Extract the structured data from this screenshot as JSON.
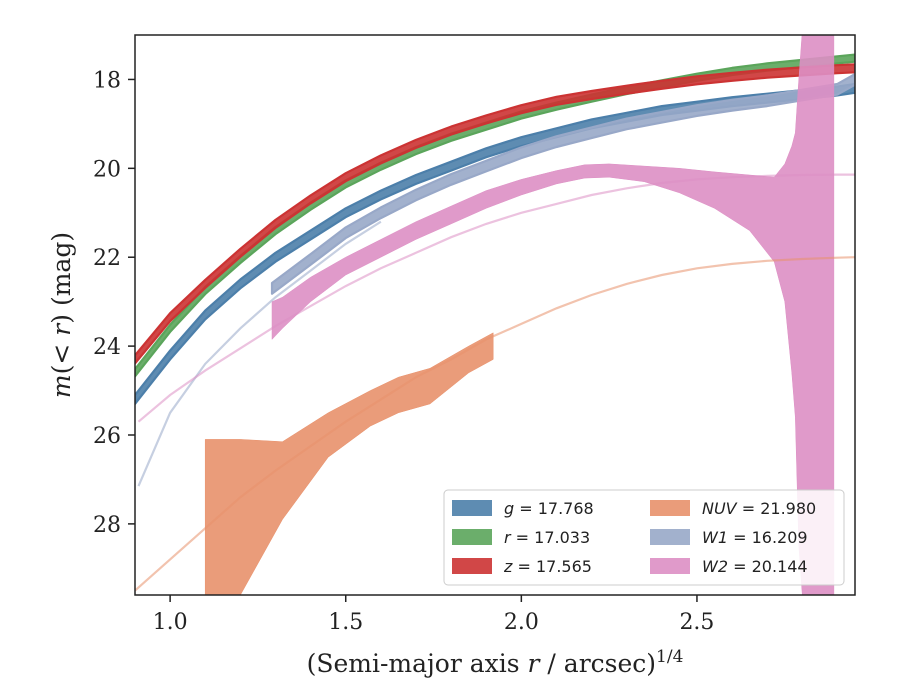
{
  "chart_data": {
    "type": "area",
    "title": "",
    "xlabel_main": "(Semi-major axis ",
    "xlabel_var": "r",
    "xlabel_tail": " / arcsec)",
    "xlabel_exp": "1/4",
    "ylabel_var": "m",
    "ylabel_paren": "(< ",
    "ylabel_r": "r",
    "ylabel_tail": ") (mag)",
    "xlim": [
      0.9,
      2.95
    ],
    "ylim": [
      29.6,
      17.0
    ],
    "y_inverted": true,
    "xticks": [
      1.0,
      1.5,
      2.0,
      2.5
    ],
    "xtick_labels": [
      "1.0",
      "1.5",
      "2.0",
      "2.5"
    ],
    "yticks": [
      18,
      20,
      22,
      24,
      26,
      28
    ],
    "ytick_labels": [
      "18",
      "20",
      "22",
      "24",
      "26",
      "28"
    ],
    "legend_placement": "lower-right",
    "grid": false,
    "series": [
      {
        "name": "g",
        "label_var": "g",
        "label_val": " = 17.768",
        "color": "#4c7faa",
        "band_x": [
          0.9,
          1.0,
          1.1,
          1.2,
          1.3,
          1.4,
          1.5,
          1.6,
          1.7,
          1.8,
          1.9,
          2.0,
          2.1,
          2.2,
          2.3,
          2.4,
          2.5,
          2.6,
          2.7,
          2.8,
          2.9,
          2.95
        ],
        "band_center": [
          25.2,
          24.2,
          23.3,
          22.6,
          22.0,
          21.5,
          21.0,
          20.6,
          20.25,
          19.95,
          19.65,
          19.4,
          19.2,
          19.0,
          18.85,
          18.7,
          18.6,
          18.5,
          18.42,
          18.34,
          18.26,
          18.2
        ],
        "band_halfwidth": 0.1,
        "model_x": [],
        "model_y": []
      },
      {
        "name": "r",
        "label_var": "r",
        "label_val": " = 17.033",
        "color": "#5ba55b",
        "band_x": [
          0.9,
          1.0,
          1.1,
          1.2,
          1.3,
          1.4,
          1.5,
          1.6,
          1.7,
          1.8,
          1.9,
          2.0,
          2.1,
          2.2,
          2.3,
          2.4,
          2.5,
          2.6,
          2.7,
          2.8,
          2.9,
          2.95
        ],
        "band_center": [
          24.6,
          23.6,
          22.75,
          22.05,
          21.4,
          20.85,
          20.35,
          19.95,
          19.6,
          19.3,
          19.05,
          18.8,
          18.6,
          18.42,
          18.25,
          18.1,
          17.95,
          17.82,
          17.72,
          17.64,
          17.56,
          17.52
        ],
        "band_halfwidth": 0.08,
        "model_x": [],
        "model_y": []
      },
      {
        "name": "z",
        "label_var": "z",
        "label_val": " = 17.565",
        "color": "#cc3333",
        "band_x": [
          0.9,
          1.0,
          1.1,
          1.2,
          1.3,
          1.4,
          1.5,
          1.6,
          1.7,
          1.8,
          1.9,
          2.0,
          2.1,
          2.2,
          2.3,
          2.4,
          2.5,
          2.6,
          2.7,
          2.8,
          2.9,
          2.95
        ],
        "band_center": [
          24.3,
          23.35,
          22.6,
          21.9,
          21.25,
          20.7,
          20.2,
          19.8,
          19.45,
          19.15,
          18.9,
          18.67,
          18.48,
          18.35,
          18.23,
          18.12,
          18.02,
          17.94,
          17.87,
          17.82,
          17.77,
          17.75
        ],
        "band_halfwidth": 0.09,
        "model_x": [],
        "model_y": []
      },
      {
        "name": "NUV",
        "label_var": "NUV",
        "label_val": " = 21.980",
        "color": "#e8916b",
        "band_x": [
          1.1,
          1.2,
          1.32,
          1.45,
          1.57,
          1.65,
          1.74,
          1.85,
          1.92
        ],
        "band_upper": [
          26.1,
          26.1,
          26.15,
          25.5,
          25.0,
          24.7,
          24.5,
          24.0,
          23.7
        ],
        "band_lower": [
          29.6,
          29.6,
          27.9,
          26.5,
          25.8,
          25.5,
          25.3,
          24.6,
          24.3
        ],
        "model_x": [
          0.9,
          1.0,
          1.1,
          1.2,
          1.3,
          1.4,
          1.5,
          1.6,
          1.7,
          1.8,
          1.9,
          2.0,
          2.1,
          2.2,
          2.3,
          2.4,
          2.5,
          2.6,
          2.7,
          2.8,
          2.9,
          2.95
        ],
        "model_y": [
          29.5,
          28.8,
          28.1,
          27.4,
          26.8,
          26.25,
          25.7,
          25.2,
          24.7,
          24.3,
          23.85,
          23.5,
          23.15,
          22.85,
          22.6,
          22.4,
          22.25,
          22.15,
          22.08,
          22.04,
          22.01,
          22.0
        ]
      },
      {
        "name": "W1",
        "label_var": "W1",
        "label_val": " = 16.209",
        "color": "#98a8c8",
        "band_x": [
          1.29,
          1.4,
          1.5,
          1.6,
          1.7,
          1.8,
          1.9,
          2.0,
          2.1,
          2.2,
          2.3,
          2.4,
          2.5,
          2.6,
          2.7,
          2.8,
          2.9,
          2.95
        ],
        "band_center": [
          22.7,
          22.05,
          21.45,
          21.0,
          20.6,
          20.25,
          19.95,
          19.65,
          19.4,
          19.2,
          19.0,
          18.85,
          18.7,
          18.58,
          18.48,
          18.35,
          18.22,
          18.0
        ],
        "band_halfwidth": 0.12,
        "model_x": [
          0.91,
          1.0,
          1.1,
          1.2,
          1.3,
          1.4,
          1.5,
          1.6
        ],
        "model_y": [
          27.15,
          25.5,
          24.4,
          23.6,
          22.9,
          22.3,
          21.7,
          21.2
        ]
      },
      {
        "name": "W2",
        "label_var": "W2",
        "label_val": " = 20.144",
        "color": "#dd8fc4",
        "band_x": [
          1.29,
          1.32,
          1.4,
          1.5,
          1.6,
          1.7,
          1.8,
          1.9,
          2.0,
          2.1,
          2.18,
          2.25,
          2.35,
          2.45,
          2.55,
          2.65,
          2.72,
          2.75,
          2.77,
          2.78,
          2.79,
          2.8,
          2.85,
          2.89
        ],
        "band_upper": [
          23.0,
          22.9,
          22.45,
          22.0,
          21.6,
          21.2,
          20.85,
          20.5,
          20.25,
          20.05,
          19.92,
          19.9,
          19.95,
          20.0,
          20.08,
          20.15,
          20.2,
          19.9,
          19.5,
          19.2,
          18.0,
          16.9,
          16.9,
          16.9
        ],
        "band_lower": [
          23.85,
          23.6,
          23.0,
          22.4,
          22.0,
          21.6,
          21.25,
          20.9,
          20.6,
          20.35,
          20.22,
          20.2,
          20.3,
          20.55,
          20.9,
          21.4,
          22.1,
          23.0,
          24.6,
          25.6,
          28.5,
          29.6,
          29.6,
          29.6
        ],
        "model_x": [
          0.91,
          1.0,
          1.1,
          1.2,
          1.3,
          1.4,
          1.5,
          1.6,
          1.7,
          1.8,
          1.9,
          2.0,
          2.1,
          2.2,
          2.3,
          2.4,
          2.5,
          2.6,
          2.7,
          2.8,
          2.9,
          2.95
        ],
        "model_y": [
          25.7,
          25.1,
          24.55,
          24.05,
          23.55,
          23.1,
          22.65,
          22.25,
          21.9,
          21.55,
          21.25,
          21.0,
          20.8,
          20.6,
          20.45,
          20.33,
          20.25,
          20.2,
          20.17,
          20.15,
          20.14,
          20.14
        ]
      }
    ]
  }
}
